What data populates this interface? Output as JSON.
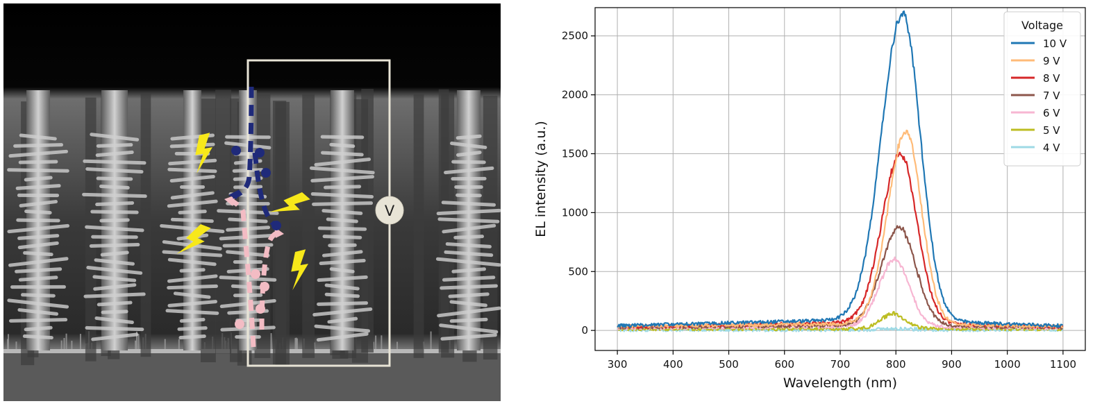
{
  "sem_image": {
    "voltmeter_label": "V",
    "colors": {
      "electron_path": "#1f2a7a",
      "hole_path": "#f3bcc4",
      "light_emission": "#f7e81a",
      "circuit": "#e8e4d6"
    },
    "icons": [
      "lightning-icon",
      "voltmeter-icon"
    ]
  },
  "chart_data": {
    "type": "line",
    "xlabel": "Wavelength (nm)",
    "ylabel": "EL intensity (a.u.)",
    "xlim": [
      260,
      1140
    ],
    "ylim": [
      -170,
      2740
    ],
    "xticks": [
      300,
      400,
      500,
      600,
      700,
      800,
      900,
      1000,
      1100
    ],
    "yticks": [
      0,
      500,
      1000,
      1500,
      2000,
      2500
    ],
    "grid": true,
    "legend": {
      "title": "Voltage",
      "placement": "top-right"
    },
    "series": [
      {
        "name": "10 V",
        "color": "#1f77b4",
        "baseline": 40,
        "ramp_to": 95,
        "peak_x": 812,
        "peak_y": 2600,
        "sigma_left": 38,
        "sigma_right": 32
      },
      {
        "name": "9 V",
        "color": "#ffbb78",
        "baseline": 35,
        "ramp_to": 60,
        "peak_x": 818,
        "peak_y": 1640,
        "sigma_left": 32,
        "sigma_right": 28
      },
      {
        "name": "8 V",
        "color": "#d62728",
        "baseline": 30,
        "ramp_to": 70,
        "peak_x": 808,
        "peak_y": 1430,
        "sigma_left": 33,
        "sigma_right": 30
      },
      {
        "name": "7 V",
        "color": "#8c564b",
        "baseline": 25,
        "ramp_to": 45,
        "peak_x": 806,
        "peak_y": 830,
        "sigma_left": 32,
        "sigma_right": 30
      },
      {
        "name": "6 V",
        "color": "#f7b6d2",
        "baseline": 20,
        "ramp_to": 35,
        "peak_x": 798,
        "peak_y": 570,
        "sigma_left": 28,
        "sigma_right": 26
      },
      {
        "name": "5 V",
        "color": "#bcbd22",
        "baseline": 12,
        "ramp_to": 15,
        "peak_x": 795,
        "peak_y": 125,
        "sigma_left": 22,
        "sigma_right": 22
      },
      {
        "name": "4 V",
        "color": "#9edae5",
        "baseline": 5,
        "ramp_to": 5,
        "peak_x": 800,
        "peak_y": 10,
        "sigma_left": 30,
        "sigma_right": 30
      }
    ]
  }
}
